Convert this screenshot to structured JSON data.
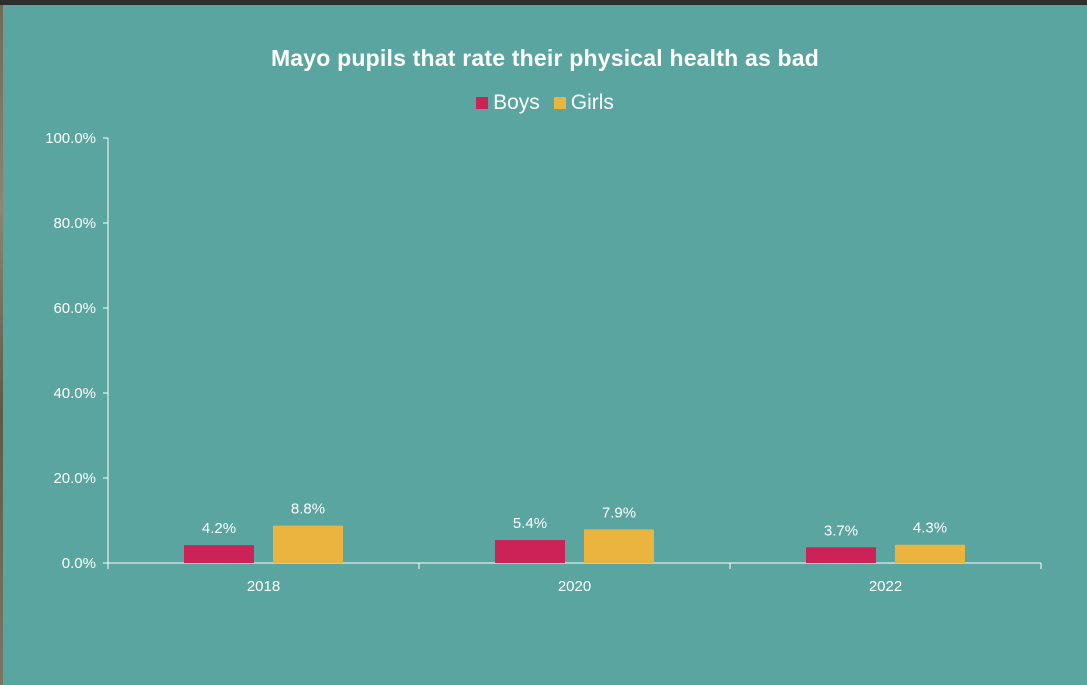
{
  "chart_data": {
    "type": "bar",
    "title": "Mayo pupils that rate their physical health as bad",
    "categories": [
      "2018",
      "2020",
      "2022"
    ],
    "series": [
      {
        "name": "Boys",
        "values": [
          4.2,
          5.4,
          3.7
        ],
        "labels": [
          "4.2%",
          "5.4%",
          "3.7%"
        ],
        "color": "#cc2257"
      },
      {
        "name": "Girls",
        "values": [
          8.8,
          7.9,
          4.3
        ],
        "labels": [
          "8.8%",
          "7.9%",
          "4.3%"
        ],
        "color": "#eab43e"
      }
    ],
    "ylim": [
      0,
      100
    ],
    "yticks": [
      "0.0%",
      "20.0%",
      "40.0%",
      "60.0%",
      "80.0%",
      "100.0%"
    ],
    "xlabel": "",
    "ylabel": "",
    "legend_position": "top-center",
    "grid": false
  },
  "colors": {
    "background": "#5aa5a0",
    "axis": "#ffffff",
    "text": "#ffffff"
  }
}
